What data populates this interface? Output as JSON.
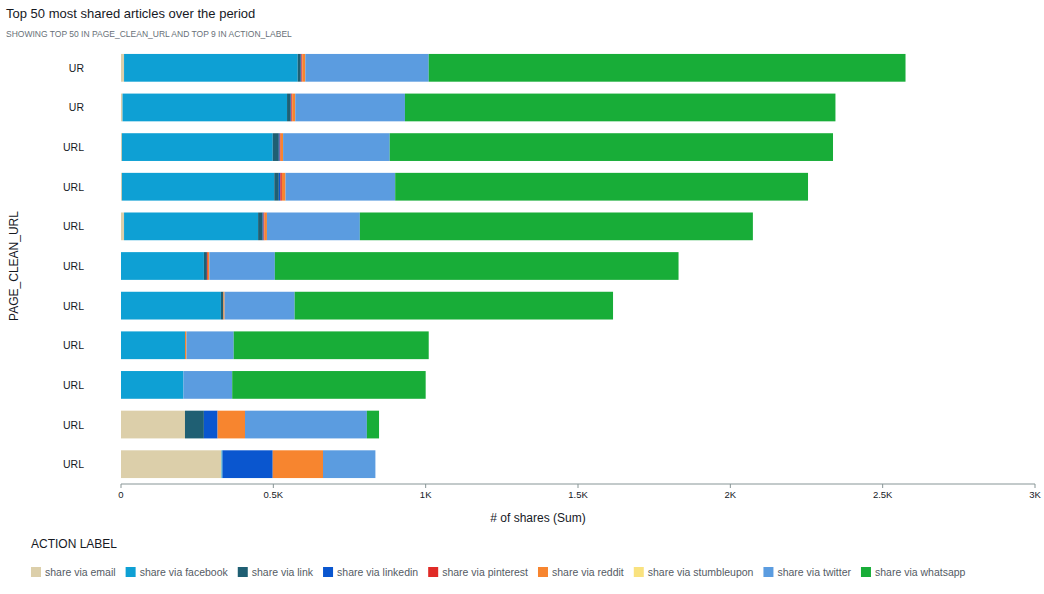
{
  "chart_data": {
    "type": "bar",
    "orientation": "horizontal",
    "stacked": true,
    "grid": false,
    "legend": "bottom",
    "title": "Top 50 most shared articles over the period",
    "subtitle": "SHOWING TOP 50 IN PAGE_CLEAN_URL AND TOP 9 IN ACTION_LABEL",
    "x_label": "# of shares (Sum)",
    "y_label": "PAGE_CLEAN_URL",
    "legend_title": "ACTION LABEL",
    "categories": [
      "UR",
      "UR",
      "URL",
      "URL",
      "URL",
      "URL",
      "URL",
      "URL",
      "URL",
      "URL",
      "URL"
    ],
    "xlim": [
      0,
      3000
    ],
    "xticks": [
      0,
      {
        "value": 500,
        "label": "0.5K"
      },
      {
        "value": 1000,
        "label": "1K"
      },
      {
        "value": 1500,
        "label": "1.5K"
      },
      {
        "value": 2000,
        "label": "2K"
      },
      {
        "value": 2500,
        "label": "2.5K"
      },
      {
        "value": 3000,
        "label": "3K"
      }
    ],
    "series": [
      {
        "name": "share via email",
        "color": "#dccfaa",
        "values": [
          10,
          5,
          3,
          3,
          10,
          0,
          0,
          0,
          0,
          210,
          330
        ]
      },
      {
        "name": "share via facebook",
        "color": "#0ea0d4",
        "values": [
          570,
          540,
          495,
          500,
          440,
          272,
          328,
          210,
          205,
          0,
          3
        ]
      },
      {
        "name": "share via link",
        "color": "#1f5f73",
        "values": [
          10,
          12,
          20,
          15,
          15,
          10,
          8,
          0,
          0,
          62,
          0
        ]
      },
      {
        "name": "share via linkedin",
        "color": "#0a56cf",
        "values": [
          2,
          2,
          3,
          5,
          3,
          0,
          0,
          0,
          0,
          45,
          165
        ]
      },
      {
        "name": "share via pinterest",
        "color": "#e02b27",
        "values": [
          3,
          3,
          3,
          5,
          3,
          3,
          0,
          0,
          0,
          0,
          0
        ]
      },
      {
        "name": "share via reddit",
        "color": "#f7852f",
        "values": [
          10,
          10,
          8,
          12,
          8,
          5,
          4,
          5,
          0,
          90,
          165
        ]
      },
      {
        "name": "share via stumbleupon",
        "color": "#f9e27f",
        "values": [
          0,
          0,
          0,
          0,
          0,
          0,
          0,
          0,
          0,
          0,
          0
        ]
      },
      {
        "name": "share via twitter",
        "color": "#5b9ce0",
        "values": [
          405,
          360,
          350,
          360,
          305,
          215,
          230,
          155,
          160,
          400,
          172
        ]
      },
      {
        "name": "share via whatsapp",
        "color": "#18ad38",
        "values": [
          1565,
          1413,
          1455,
          1355,
          1290,
          1325,
          1045,
          640,
          635,
          40,
          0
        ]
      }
    ]
  }
}
